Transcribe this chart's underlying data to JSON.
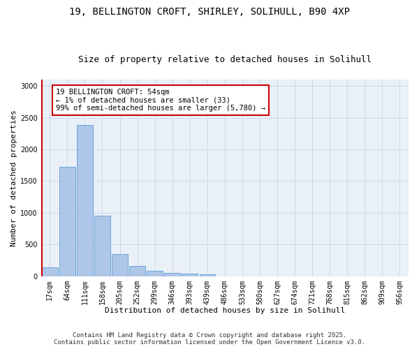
{
  "title_line1": "19, BELLINGTON CROFT, SHIRLEY, SOLIHULL, B90 4XP",
  "title_line2": "Size of property relative to detached houses in Solihull",
  "xlabel": "Distribution of detached houses by size in Solihull",
  "ylabel": "Number of detached properties",
  "categories": [
    "17sqm",
    "64sqm",
    "111sqm",
    "158sqm",
    "205sqm",
    "252sqm",
    "299sqm",
    "346sqm",
    "393sqm",
    "439sqm",
    "486sqm",
    "533sqm",
    "580sqm",
    "627sqm",
    "674sqm",
    "721sqm",
    "768sqm",
    "815sqm",
    "862sqm",
    "909sqm",
    "956sqm"
  ],
  "values": [
    140,
    1720,
    2390,
    950,
    345,
    160,
    90,
    55,
    45,
    30,
    0,
    0,
    0,
    0,
    0,
    0,
    0,
    0,
    0,
    0,
    0
  ],
  "bar_color": "#aec6e8",
  "bar_edge_color": "#5b9bd5",
  "highlight_color": "#cc0000",
  "annotation_text": "19 BELLINGTON CROFT: 54sqm\n← 1% of detached houses are smaller (33)\n99% of semi-detached houses are larger (5,780) →",
  "annotation_box_color": "#ffffff",
  "annotation_box_edge_color": "#cc0000",
  "ylim": [
    0,
    3100
  ],
  "yticks": [
    0,
    500,
    1000,
    1500,
    2000,
    2500,
    3000
  ],
  "grid_color": "#d0d8e8",
  "background_color": "#eaf0f8",
  "footer_line1": "Contains HM Land Registry data © Crown copyright and database right 2025.",
  "footer_line2": "Contains public sector information licensed under the Open Government Licence v3.0.",
  "title_fontsize": 10,
  "subtitle_fontsize": 9,
  "axis_label_fontsize": 8,
  "tick_fontsize": 7,
  "annotation_fontsize": 7.5,
  "footer_fontsize": 6.5
}
